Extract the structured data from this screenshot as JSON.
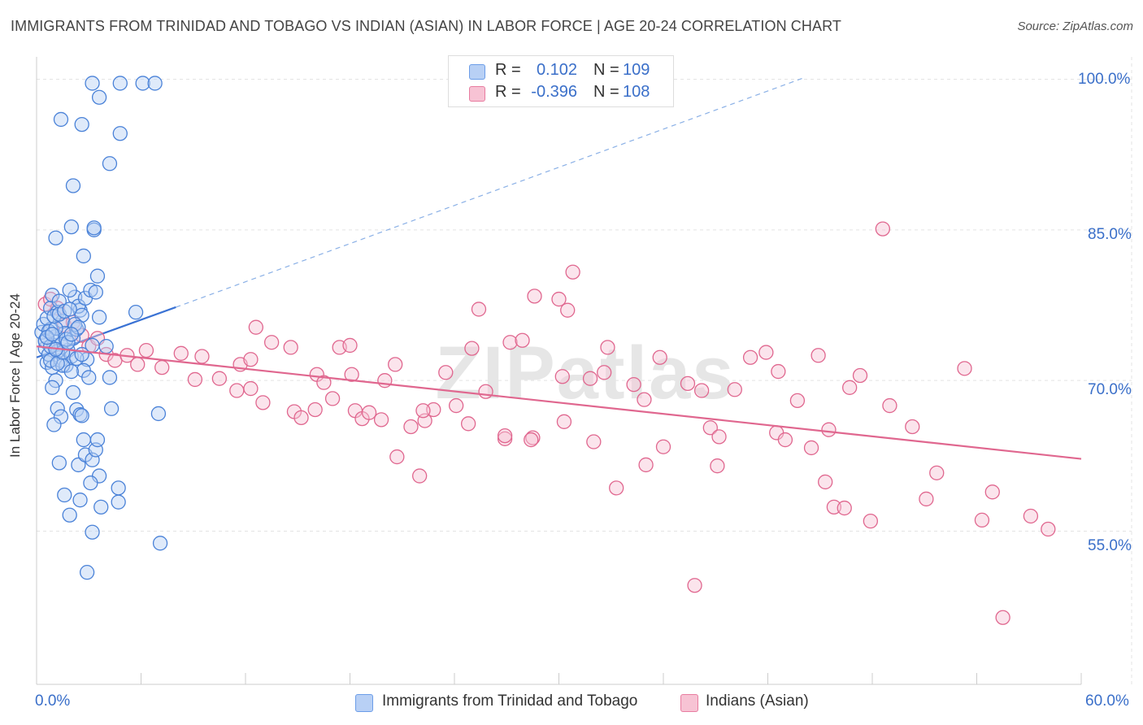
{
  "title": "IMMIGRANTS FROM TRINIDAD AND TOBAGO VS INDIAN (ASIAN) IN LABOR FORCE | AGE 20-24 CORRELATION CHART",
  "source": "Source: ZipAtlas.com",
  "watermark": "ZIPatlas",
  "legend": {
    "rows": [
      {
        "r_label": "R =",
        "r_value": "0.102",
        "n_label": "N =",
        "n_value": "109",
        "color": "#6b9de8",
        "fill": "#b8d0f5"
      },
      {
        "r_label": "R =",
        "r_value": "-0.396",
        "n_label": "N =",
        "n_value": "108",
        "color": "#e87ca0",
        "fill": "#f7c3d4"
      }
    ]
  },
  "bottom_legend": [
    {
      "label": "Immigrants from Trinidad and Tobago",
      "color": "#6b9de8",
      "fill": "#b8d0f5"
    },
    {
      "label": "Indians (Asian)",
      "color": "#e87ca0",
      "fill": "#f7c3d4"
    }
  ],
  "chart_data": {
    "type": "scatter",
    "title": "IMMIGRANTS FROM TRINIDAD AND TOBAGO VS INDIAN (ASIAN) IN LABOR FORCE | AGE 20-24 CORRELATION CHART",
    "xlabel": "",
    "ylabel": "In Labor Force | Age 20-24",
    "xlim": [
      0,
      60
    ],
    "ylim": [
      40,
      101.5
    ],
    "x_tick_labels": [
      "0.0%",
      "60.0%"
    ],
    "y_tick_labels": [
      "100.0%",
      "85.0%",
      "70.0%",
      "55.0%"
    ],
    "y_ticks": [
      100,
      85,
      70,
      55
    ],
    "grid": true,
    "series": [
      {
        "name": "Immigrants from Trinidad and Tobago",
        "color": "#4a82d8",
        "fill": "#b8d0f5",
        "trend": {
          "x": [
            0,
            8
          ],
          "y": [
            72.3,
            77.3
          ],
          "extension_to": [
            44,
            100.1
          ]
        },
        "points": [
          [
            0.3,
            74.8
          ],
          [
            0.4,
            75.6
          ],
          [
            0.5,
            73.2
          ],
          [
            0.6,
            71.8
          ],
          [
            0.5,
            74.0
          ],
          [
            0.7,
            72.6
          ],
          [
            0.8,
            75.1
          ],
          [
            0.9,
            71.3
          ],
          [
            1.0,
            73.5
          ],
          [
            1.1,
            74.4
          ],
          [
            0.6,
            76.2
          ],
          [
            0.8,
            77.2
          ],
          [
            0.9,
            78.5
          ],
          [
            1.2,
            76.8
          ],
          [
            1.3,
            77.9
          ],
          [
            1.5,
            75.9
          ],
          [
            1.6,
            74.7
          ],
          [
            1.4,
            72.0
          ],
          [
            1.8,
            73.0
          ],
          [
            1.7,
            71.5
          ],
          [
            2.0,
            72.4
          ],
          [
            2.1,
            74.2
          ],
          [
            2.3,
            75.1
          ],
          [
            2.5,
            77.0
          ],
          [
            2.2,
            78.3
          ],
          [
            2.4,
            77.4
          ],
          [
            2.6,
            76.5
          ],
          [
            1.9,
            79.0
          ],
          [
            2.8,
            78.2
          ],
          [
            3.1,
            79.0
          ],
          [
            3.4,
            78.8
          ],
          [
            3.6,
            76.3
          ],
          [
            3.2,
            73.5
          ],
          [
            2.9,
            72.1
          ],
          [
            2.7,
            71.0
          ],
          [
            3.0,
            70.3
          ],
          [
            1.1,
            70.0
          ],
          [
            0.9,
            69.3
          ],
          [
            2.1,
            68.8
          ],
          [
            1.2,
            67.2
          ],
          [
            1.4,
            66.4
          ],
          [
            1.0,
            65.6
          ],
          [
            2.3,
            67.1
          ],
          [
            2.5,
            66.6
          ],
          [
            2.6,
            66.5
          ],
          [
            4.3,
            67.2
          ],
          [
            7.0,
            66.7
          ],
          [
            1.3,
            61.8
          ],
          [
            2.4,
            61.6
          ],
          [
            2.7,
            64.1
          ],
          [
            2.8,
            62.6
          ],
          [
            3.2,
            62.1
          ],
          [
            3.4,
            63.1
          ],
          [
            3.5,
            64.1
          ],
          [
            3.6,
            60.5
          ],
          [
            3.1,
            59.8
          ],
          [
            1.6,
            58.6
          ],
          [
            2.5,
            58.1
          ],
          [
            1.9,
            56.6
          ],
          [
            3.7,
            57.4
          ],
          [
            4.7,
            59.3
          ],
          [
            4.7,
            57.9
          ],
          [
            3.2,
            54.9
          ],
          [
            7.1,
            53.8
          ],
          [
            2.9,
            50.9
          ],
          [
            2.1,
            89.4
          ],
          [
            2.0,
            85.3
          ],
          [
            3.3,
            85.0
          ],
          [
            3.3,
            85.2
          ],
          [
            1.1,
            84.2
          ],
          [
            2.7,
            82.4
          ],
          [
            3.5,
            80.4
          ],
          [
            1.4,
            96.0
          ],
          [
            3.6,
            98.2
          ],
          [
            3.2,
            99.6
          ],
          [
            4.8,
            99.6
          ],
          [
            6.1,
            99.6
          ],
          [
            6.8,
            99.6
          ],
          [
            2.6,
            95.5
          ],
          [
            4.8,
            94.6
          ],
          [
            4.2,
            91.6
          ],
          [
            5.7,
            76.8
          ],
          [
            4.0,
            73.4
          ],
          [
            4.2,
            70.3
          ],
          [
            0.5,
            73.9
          ],
          [
            0.7,
            74.9
          ],
          [
            1.1,
            75.2
          ],
          [
            1.4,
            73.6
          ],
          [
            1.7,
            74.1
          ],
          [
            1.5,
            71.5
          ],
          [
            2.0,
            70.9
          ],
          [
            1.2,
            72.9
          ],
          [
            0.8,
            73.4
          ],
          [
            1.0,
            76.4
          ],
          [
            1.3,
            76.6
          ],
          [
            1.6,
            76.9
          ],
          [
            1.9,
            77.1
          ],
          [
            2.2,
            75.6
          ],
          [
            2.4,
            75.3
          ],
          [
            0.6,
            74.3
          ],
          [
            0.8,
            72.0
          ],
          [
            1.2,
            71.7
          ],
          [
            1.5,
            72.8
          ],
          [
            1.8,
            73.8
          ],
          [
            2.0,
            74.6
          ],
          [
            2.3,
            72.2
          ],
          [
            2.6,
            72.6
          ],
          [
            1.1,
            73.1
          ],
          [
            0.9,
            74.6
          ]
        ]
      },
      {
        "name": "Indians (Asian)",
        "color": "#e0678f",
        "fill": "#f7c3d4",
        "trend": {
          "x": [
            0,
            60
          ],
          "y": [
            73.4,
            62.2
          ]
        },
        "points": [
          [
            0.5,
            77.6
          ],
          [
            0.8,
            78.1
          ],
          [
            1.2,
            77.2
          ],
          [
            1.6,
            75.5
          ],
          [
            2.1,
            75.8
          ],
          [
            2.6,
            74.5
          ],
          [
            3.0,
            73.4
          ],
          [
            3.5,
            74.2
          ],
          [
            4.0,
            72.6
          ],
          [
            4.5,
            72.0
          ],
          [
            5.2,
            72.5
          ],
          [
            5.8,
            71.6
          ],
          [
            6.3,
            73.0
          ],
          [
            7.2,
            71.3
          ],
          [
            8.3,
            72.7
          ],
          [
            9.5,
            72.4
          ],
          [
            9.1,
            70.1
          ],
          [
            10.5,
            70.2
          ],
          [
            11.5,
            69.0
          ],
          [
            12.3,
            69.2
          ],
          [
            13.0,
            67.8
          ],
          [
            11.7,
            71.6
          ],
          [
            12.3,
            72.1
          ],
          [
            12.6,
            75.3
          ],
          [
            13.5,
            73.8
          ],
          [
            14.6,
            73.3
          ],
          [
            16.1,
            70.6
          ],
          [
            16.5,
            69.8
          ],
          [
            17.4,
            73.3
          ],
          [
            18.0,
            73.5
          ],
          [
            18.1,
            70.6
          ],
          [
            16.0,
            67.1
          ],
          [
            14.8,
            66.9
          ],
          [
            15.2,
            66.3
          ],
          [
            17.0,
            68.2
          ],
          [
            18.3,
            67.0
          ],
          [
            18.7,
            66.2
          ],
          [
            19.1,
            66.8
          ],
          [
            20.0,
            70.0
          ],
          [
            20.6,
            71.6
          ],
          [
            20.7,
            62.4
          ],
          [
            19.8,
            66.1
          ],
          [
            21.5,
            65.4
          ],
          [
            22.3,
            66.0
          ],
          [
            22.8,
            67.1
          ],
          [
            22.2,
            67.0
          ],
          [
            22.0,
            60.5
          ],
          [
            23.5,
            70.8
          ],
          [
            24.1,
            67.5
          ],
          [
            25.0,
            73.2
          ],
          [
            25.4,
            77.1
          ],
          [
            24.8,
            65.7
          ],
          [
            25.8,
            68.9
          ],
          [
            26.9,
            64.2
          ],
          [
            27.2,
            73.8
          ],
          [
            27.9,
            74.0
          ],
          [
            28.5,
            64.3
          ],
          [
            28.6,
            78.4
          ],
          [
            30.0,
            78.1
          ],
          [
            30.2,
            70.4
          ],
          [
            30.3,
            65.9
          ],
          [
            30.5,
            77.0
          ],
          [
            26.9,
            64.5
          ],
          [
            28.4,
            64.1
          ],
          [
            30.8,
            80.8
          ],
          [
            31.8,
            70.2
          ],
          [
            32.6,
            70.8
          ],
          [
            32.8,
            73.3
          ],
          [
            32.0,
            63.9
          ],
          [
            33.3,
            59.3
          ],
          [
            34.3,
            69.6
          ],
          [
            34.9,
            68.1
          ],
          [
            35.0,
            61.6
          ],
          [
            35.8,
            72.3
          ],
          [
            36.0,
            63.4
          ],
          [
            37.4,
            69.7
          ],
          [
            38.2,
            69.0
          ],
          [
            38.7,
            65.3
          ],
          [
            39.1,
            61.5
          ],
          [
            39.2,
            64.4
          ],
          [
            41.0,
            72.3
          ],
          [
            42.6,
            70.9
          ],
          [
            42.5,
            64.8
          ],
          [
            43.0,
            64.1
          ],
          [
            43.7,
            68.0
          ],
          [
            44.9,
            72.5
          ],
          [
            45.3,
            59.9
          ],
          [
            45.5,
            65.1
          ],
          [
            45.8,
            57.4
          ],
          [
            46.7,
            69.3
          ],
          [
            47.3,
            70.5
          ],
          [
            47.9,
            56.0
          ],
          [
            48.6,
            85.1
          ],
          [
            49.0,
            67.5
          ],
          [
            50.3,
            65.4
          ],
          [
            51.1,
            58.2
          ],
          [
            51.7,
            60.8
          ],
          [
            53.3,
            71.2
          ],
          [
            54.3,
            56.1
          ],
          [
            54.9,
            58.9
          ],
          [
            55.5,
            46.4
          ],
          [
            37.8,
            49.6
          ],
          [
            44.5,
            63.3
          ],
          [
            46.4,
            57.3
          ],
          [
            57.1,
            56.5
          ],
          [
            58.1,
            55.2
          ],
          [
            41.9,
            72.8
          ],
          [
            40.1,
            69.1
          ]
        ]
      }
    ]
  }
}
